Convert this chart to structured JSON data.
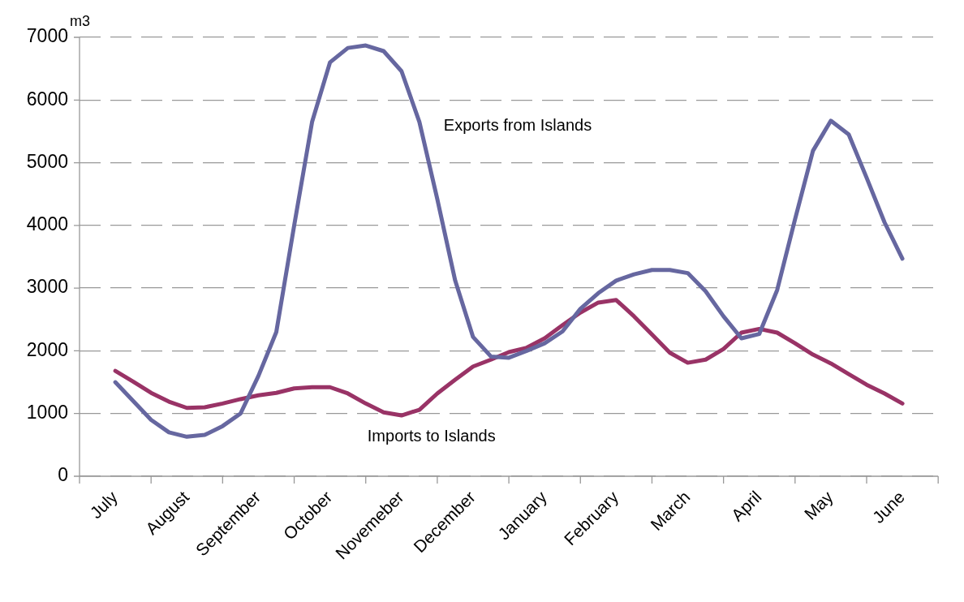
{
  "chart_data": {
    "type": "line",
    "ylabel": "m3",
    "categories": [
      null,
      null,
      "July",
      null,
      null,
      null,
      "August",
      null,
      null,
      null,
      "September",
      null,
      null,
      null,
      "October",
      null,
      null,
      null,
      "Novemeber",
      null,
      null,
      null,
      "December",
      null,
      null,
      null,
      "January",
      null,
      null,
      null,
      "February",
      null,
      null,
      null,
      "March",
      null,
      null,
      null,
      "April",
      null,
      null,
      null,
      "May",
      null,
      null,
      null,
      "June",
      null,
      null
    ],
    "series": [
      {
        "name": "Exports from Islands",
        "color": "#6667a0",
        "values": [
          null,
          null,
          1500,
          1200,
          900,
          700,
          630,
          660,
          800,
          1000,
          1600,
          2300,
          4000,
          5650,
          6600,
          6830,
          6870,
          6780,
          6460,
          5650,
          4420,
          3120,
          2220,
          1910,
          1890,
          2000,
          2120,
          2310,
          2670,
          2920,
          3120,
          3220,
          3290,
          3290,
          3240,
          2950,
          2550,
          2200,
          2270,
          2970,
          4100,
          5190,
          5670,
          5450,
          4760,
          4050,
          3470,
          null,
          null
        ]
      },
      {
        "name": "Imports to Islands",
        "color": "#993366",
        "values": [
          null,
          null,
          1680,
          1510,
          1330,
          1190,
          1090,
          1100,
          1160,
          1230,
          1290,
          1330,
          1400,
          1420,
          1420,
          1320,
          1160,
          1020,
          970,
          1060,
          1320,
          1540,
          1750,
          1860,
          1980,
          2050,
          2200,
          2410,
          2610,
          2770,
          2810,
          2550,
          2260,
          1970,
          1810,
          1860,
          2030,
          2290,
          2350,
          2290,
          2120,
          1940,
          1800,
          1630,
          1460,
          1320,
          1160,
          null,
          null
        ]
      }
    ],
    "ylim": [
      0,
      7000
    ],
    "yticks": [
      0,
      1000,
      2000,
      3000,
      4000,
      5000,
      6000,
      7000
    ],
    "grid": "y",
    "legend": false,
    "marker": "none",
    "line_style": "solid"
  }
}
